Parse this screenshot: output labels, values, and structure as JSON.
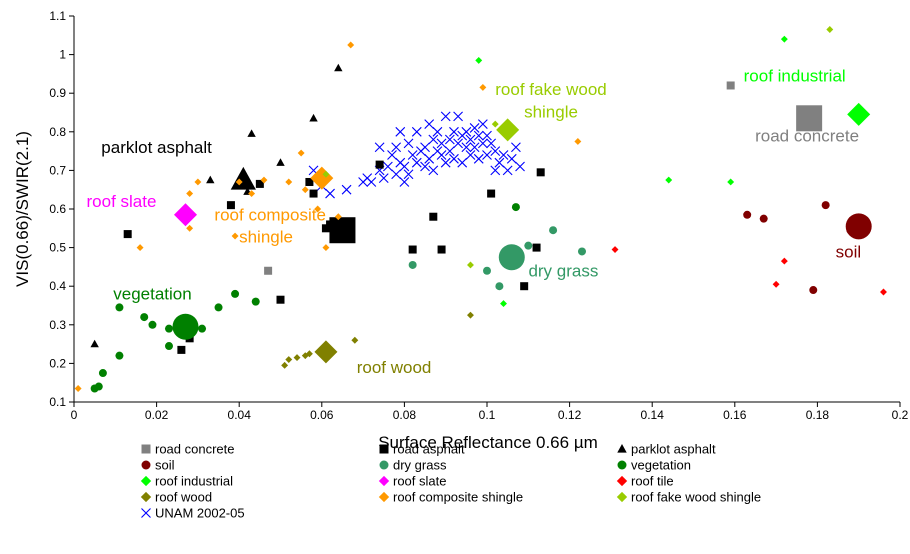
{
  "chart_data": {
    "type": "scatter",
    "xlabel": "Surface Reflectance 0.66 µm",
    "ylabel": "VIS(0.66)/SWIR(2.1)",
    "xlim": [
      0,
      0.2
    ],
    "ylim": [
      0.1,
      1.1
    ],
    "x_ticks": [
      0,
      0.02,
      0.04,
      0.06,
      0.08,
      0.1,
      0.12,
      0.14,
      0.16,
      0.18,
      0.2
    ],
    "x_tick_labels": [
      "0",
      "0.02",
      "0.04",
      "0.06",
      "0.08",
      "0.1",
      "0.12",
      "0.14",
      "0.16",
      "0.18",
      "0.2"
    ],
    "y_ticks": [
      0.1,
      0.2,
      0.3,
      0.4,
      0.5,
      0.6,
      0.7,
      0.8,
      0.9,
      1.0,
      1.1
    ],
    "y_tick_labels": [
      "0.1",
      "0.2",
      "0.3",
      "0.4",
      "0.5",
      "0.6",
      "0.7",
      "0.8",
      "0.9",
      "1",
      "1.1"
    ],
    "grid": false,
    "legend_position": "bottom",
    "series": [
      {
        "name": "road concrete",
        "marker": "square",
        "color": "#808080",
        "points": [
          [
            0.047,
            0.44
          ],
          [
            0.159,
            0.92
          ]
        ],
        "mean": [
          0.178,
          0.835
        ]
      },
      {
        "name": "road asphalt",
        "marker": "square",
        "color": "#000000",
        "points": [
          [
            0.013,
            0.535
          ],
          [
            0.026,
            0.235
          ],
          [
            0.028,
            0.265
          ],
          [
            0.038,
            0.61
          ],
          [
            0.045,
            0.665
          ],
          [
            0.05,
            0.365
          ],
          [
            0.057,
            0.67
          ],
          [
            0.058,
            0.64
          ],
          [
            0.061,
            0.55
          ],
          [
            0.062,
            0.56
          ],
          [
            0.074,
            0.715
          ],
          [
            0.082,
            0.495
          ],
          [
            0.087,
            0.58
          ],
          [
            0.089,
            0.495
          ],
          [
            0.101,
            0.64
          ],
          [
            0.109,
            0.4
          ],
          [
            0.112,
            0.5
          ],
          [
            0.113,
            0.695
          ]
        ],
        "mean": [
          0.065,
          0.545
        ]
      },
      {
        "name": "parklot asphalt",
        "marker": "triangle",
        "color": "#000000",
        "points": [
          [
            0.005,
            0.25
          ],
          [
            0.027,
            0.595
          ],
          [
            0.033,
            0.675
          ],
          [
            0.042,
            0.645
          ],
          [
            0.043,
            0.795
          ],
          [
            0.05,
            0.72
          ],
          [
            0.058,
            0.835
          ],
          [
            0.064,
            0.965
          ]
        ],
        "mean": [
          0.041,
          0.675
        ]
      },
      {
        "name": "soil",
        "marker": "circle",
        "color": "#800000",
        "points": [
          [
            0.163,
            0.585
          ],
          [
            0.167,
            0.575
          ],
          [
            0.179,
            0.39
          ],
          [
            0.182,
            0.61
          ],
          [
            0.188,
            0.545
          ]
        ],
        "mean": [
          0.19,
          0.555
        ]
      },
      {
        "name": "dry grass",
        "marker": "circle",
        "color": "#339966",
        "points": [
          [
            0.082,
            0.455
          ],
          [
            0.1,
            0.44
          ],
          [
            0.103,
            0.4
          ],
          [
            0.11,
            0.505
          ],
          [
            0.116,
            0.545
          ],
          [
            0.123,
            0.49
          ]
        ],
        "mean": [
          0.106,
          0.475
        ]
      },
      {
        "name": "vegetation",
        "marker": "circle",
        "color": "#008000",
        "points": [
          [
            0.005,
            0.135
          ],
          [
            0.006,
            0.14
          ],
          [
            0.007,
            0.175
          ],
          [
            0.011,
            0.22
          ],
          [
            0.011,
            0.345
          ],
          [
            0.017,
            0.32
          ],
          [
            0.019,
            0.3
          ],
          [
            0.023,
            0.29
          ],
          [
            0.023,
            0.245
          ],
          [
            0.028,
            0.31
          ],
          [
            0.031,
            0.29
          ],
          [
            0.035,
            0.345
          ],
          [
            0.039,
            0.38
          ],
          [
            0.044,
            0.36
          ],
          [
            0.107,
            0.605
          ]
        ],
        "mean": [
          0.027,
          0.295
        ]
      },
      {
        "name": "roof industrial",
        "marker": "diamond",
        "color": "#00ff00",
        "points": [
          [
            0.098,
            0.985
          ],
          [
            0.104,
            0.355
          ],
          [
            0.144,
            0.675
          ],
          [
            0.159,
            0.67
          ],
          [
            0.172,
            1.04
          ]
        ],
        "mean": [
          0.19,
          0.845
        ]
      },
      {
        "name": "roof slate",
        "marker": "diamond",
        "color": "#ff00ff",
        "points": [],
        "mean": [
          0.027,
          0.585
        ]
      },
      {
        "name": "roof tile",
        "marker": "diamond",
        "color": "#ff0000",
        "points": [
          [
            0.131,
            0.495
          ],
          [
            0.17,
            0.405
          ],
          [
            0.172,
            0.465
          ],
          [
            0.196,
            0.385
          ]
        ],
        "mean": null
      },
      {
        "name": "roof wood",
        "marker": "diamond",
        "color": "#808000",
        "points": [
          [
            0.051,
            0.195
          ],
          [
            0.052,
            0.21
          ],
          [
            0.054,
            0.215
          ],
          [
            0.056,
            0.22
          ],
          [
            0.057,
            0.225
          ],
          [
            0.068,
            0.26
          ],
          [
            0.096,
            0.325
          ]
        ],
        "mean": [
          0.061,
          0.23
        ]
      },
      {
        "name": "roof composite shingle",
        "marker": "diamond",
        "color": "#ff9900",
        "points": [
          [
            0.001,
            0.135
          ],
          [
            0.016,
            0.5
          ],
          [
            0.028,
            0.64
          ],
          [
            0.028,
            0.55
          ],
          [
            0.03,
            0.67
          ],
          [
            0.039,
            0.53
          ],
          [
            0.04,
            0.67
          ],
          [
            0.043,
            0.64
          ],
          [
            0.046,
            0.675
          ],
          [
            0.052,
            0.67
          ],
          [
            0.055,
            0.745
          ],
          [
            0.056,
            0.65
          ],
          [
            0.059,
            0.6
          ],
          [
            0.061,
            0.5
          ],
          [
            0.064,
            0.58
          ],
          [
            0.067,
            1.025
          ],
          [
            0.099,
            0.915
          ],
          [
            0.122,
            0.775
          ]
        ],
        "mean": [
          0.06,
          0.68
        ]
      },
      {
        "name": "roof fake wood shingle",
        "marker": "diamond",
        "color": "#99cc00",
        "points": [
          [
            0.061,
            0.69
          ],
          [
            0.096,
            0.455
          ],
          [
            0.102,
            0.82
          ],
          [
            0.183,
            1.065
          ]
        ],
        "mean": [
          0.105,
          0.805
        ]
      },
      {
        "name": "UNAM 2002-05",
        "marker": "x",
        "color": "#0000ff",
        "points": [
          [
            0.058,
            0.7
          ],
          [
            0.06,
            0.66
          ],
          [
            0.062,
            0.64
          ],
          [
            0.066,
            0.65
          ],
          [
            0.07,
            0.67
          ],
          [
            0.071,
            0.68
          ],
          [
            0.072,
            0.67
          ],
          [
            0.074,
            0.7
          ],
          [
            0.074,
            0.76
          ],
          [
            0.075,
            0.68
          ],
          [
            0.076,
            0.71
          ],
          [
            0.077,
            0.74
          ],
          [
            0.078,
            0.69
          ],
          [
            0.078,
            0.76
          ],
          [
            0.079,
            0.72
          ],
          [
            0.079,
            0.8
          ],
          [
            0.08,
            0.67
          ],
          [
            0.08,
            0.71
          ],
          [
            0.081,
            0.69
          ],
          [
            0.081,
            0.77
          ],
          [
            0.082,
            0.74
          ],
          [
            0.083,
            0.72
          ],
          [
            0.083,
            0.8
          ],
          [
            0.084,
            0.75
          ],
          [
            0.085,
            0.76
          ],
          [
            0.085,
            0.71
          ],
          [
            0.086,
            0.73
          ],
          [
            0.086,
            0.82
          ],
          [
            0.087,
            0.78
          ],
          [
            0.087,
            0.7
          ],
          [
            0.088,
            0.75
          ],
          [
            0.088,
            0.8
          ],
          [
            0.089,
            0.74
          ],
          [
            0.089,
            0.77
          ],
          [
            0.09,
            0.72
          ],
          [
            0.09,
            0.84
          ],
          [
            0.091,
            0.78
          ],
          [
            0.091,
            0.75
          ],
          [
            0.092,
            0.8
          ],
          [
            0.092,
            0.73
          ],
          [
            0.093,
            0.77
          ],
          [
            0.093,
            0.84
          ],
          [
            0.094,
            0.79
          ],
          [
            0.094,
            0.72
          ],
          [
            0.095,
            0.76
          ],
          [
            0.095,
            0.8
          ],
          [
            0.096,
            0.78
          ],
          [
            0.096,
            0.74
          ],
          [
            0.097,
            0.81
          ],
          [
            0.097,
            0.76
          ],
          [
            0.098,
            0.79
          ],
          [
            0.098,
            0.73
          ],
          [
            0.099,
            0.77
          ],
          [
            0.099,
            0.82
          ],
          [
            0.1,
            0.74
          ],
          [
            0.1,
            0.79
          ],
          [
            0.101,
            0.77
          ],
          [
            0.102,
            0.7
          ],
          [
            0.102,
            0.75
          ],
          [
            0.103,
            0.72
          ],
          [
            0.104,
            0.74
          ],
          [
            0.105,
            0.7
          ],
          [
            0.106,
            0.73
          ],
          [
            0.107,
            0.76
          ],
          [
            0.108,
            0.71
          ]
        ],
        "mean": null
      }
    ],
    "annotations": [
      {
        "text": "road concrete",
        "x": 0.1775,
        "y": 0.775,
        "color": "#808080"
      },
      {
        "text": "parklot asphalt",
        "x": 0.02,
        "y": 0.745,
        "color": "#000000"
      },
      {
        "text": "roof slate",
        "x": 0.0115,
        "y": 0.605,
        "color": "#ff00ff"
      },
      {
        "text": "roof composite",
        "x": 0.0475,
        "y": 0.57,
        "color": "#ff9900"
      },
      {
        "text": "shingle",
        "x": 0.0465,
        "y": 0.513,
        "color": "#ff9900"
      },
      {
        "text": "vegetation",
        "x": 0.019,
        "y": 0.365,
        "color": "#008000"
      },
      {
        "text": "roof wood",
        "x": 0.0775,
        "y": 0.175,
        "color": "#808000"
      },
      {
        "text": "dry grass",
        "x": 0.1185,
        "y": 0.425,
        "color": "#339966"
      },
      {
        "text": "roof fake wood",
        "x": 0.1155,
        "y": 0.895,
        "color": "#99cc00"
      },
      {
        "text": "shingle",
        "x": 0.1155,
        "y": 0.837,
        "color": "#99cc00"
      },
      {
        "text": "roof industrial",
        "x": 0.1745,
        "y": 0.93,
        "color": "#00ff00"
      },
      {
        "text": "soil",
        "x": 0.1875,
        "y": 0.475,
        "color": "#800000"
      }
    ]
  }
}
